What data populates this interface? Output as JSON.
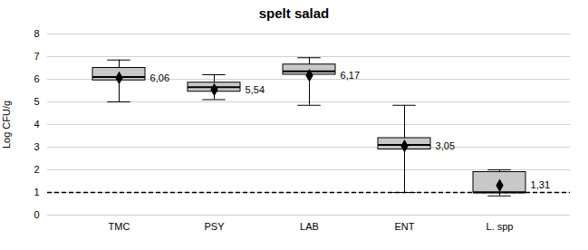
{
  "chart_data": {
    "type": "box",
    "title": "spelt salad",
    "ylabel": "Log CFU/g",
    "categories": [
      "TMC",
      "PSY",
      "LAB",
      "ENT",
      "L. spp"
    ],
    "q1": [
      5.95,
      5.45,
      6.2,
      2.9,
      1.0
    ],
    "median": [
      6.1,
      5.65,
      6.35,
      3.1,
      1.0
    ],
    "q3": [
      6.5,
      5.85,
      6.65,
      3.4,
      1.9
    ],
    "whisker_low": [
      5.0,
      5.1,
      4.85,
      1.0,
      0.85
    ],
    "whisker_high": [
      6.85,
      6.2,
      6.95,
      4.85,
      2.0
    ],
    "mean": [
      6.06,
      5.54,
      6.17,
      3.05,
      1.31
    ],
    "mean_labels": [
      "6,06",
      "5,54",
      "6,17",
      "3,05",
      "1,31"
    ],
    "data_labels": true,
    "marker": "diamond",
    "color": "#c8c8c8",
    "reference_line": 1.0,
    "line_style": "dashed",
    "ylim": [
      0,
      8
    ],
    "yticks": [
      0,
      1,
      2,
      3,
      4,
      5,
      6,
      7,
      8
    ],
    "grid": true
  }
}
